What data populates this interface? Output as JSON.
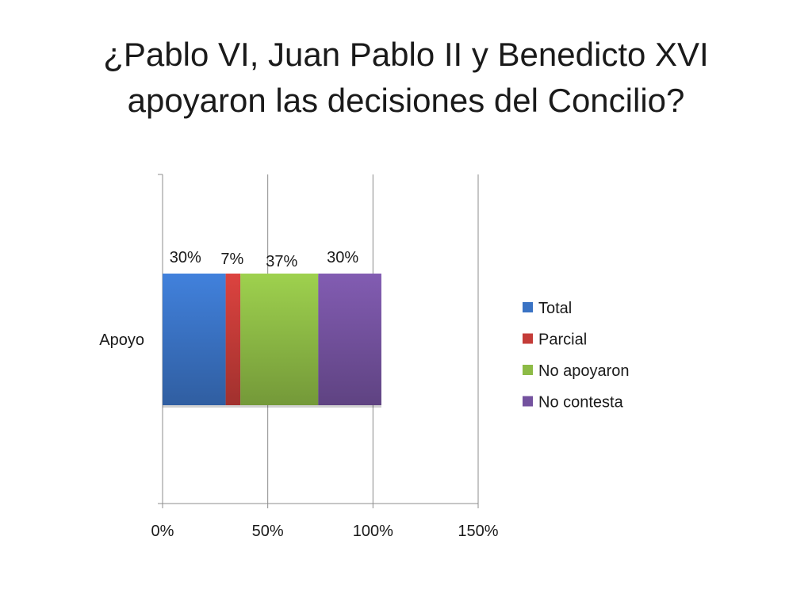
{
  "title": {
    "line1": "¿Pablo VI, Juan Pablo II y Benedicto XVI",
    "line2": "apoyaron las decisiones del Concilio?"
  },
  "chart_data": {
    "type": "bar",
    "orientation": "horizontal",
    "stacked": true,
    "categories": [
      "Apoyo"
    ],
    "series": [
      {
        "name": "Total",
        "values": [
          30
        ],
        "label": "30%",
        "color": "#3a73c4"
      },
      {
        "name": "Parcial",
        "values": [
          7
        ],
        "label": "7%",
        "color": "#c43c38"
      },
      {
        "name": "No apoyaron",
        "values": [
          37
        ],
        "label": "37%",
        "color": "#8dbb46"
      },
      {
        "name": "No contesta",
        "values": [
          30
        ],
        "label": "30%",
        "color": "#74529f"
      }
    ],
    "xlim": [
      0,
      150
    ],
    "xticks": [
      0,
      50,
      100,
      150
    ],
    "xtick_labels": [
      "0%",
      "50%",
      "100%",
      "150%"
    ],
    "grid": true,
    "legend_position": "right"
  }
}
